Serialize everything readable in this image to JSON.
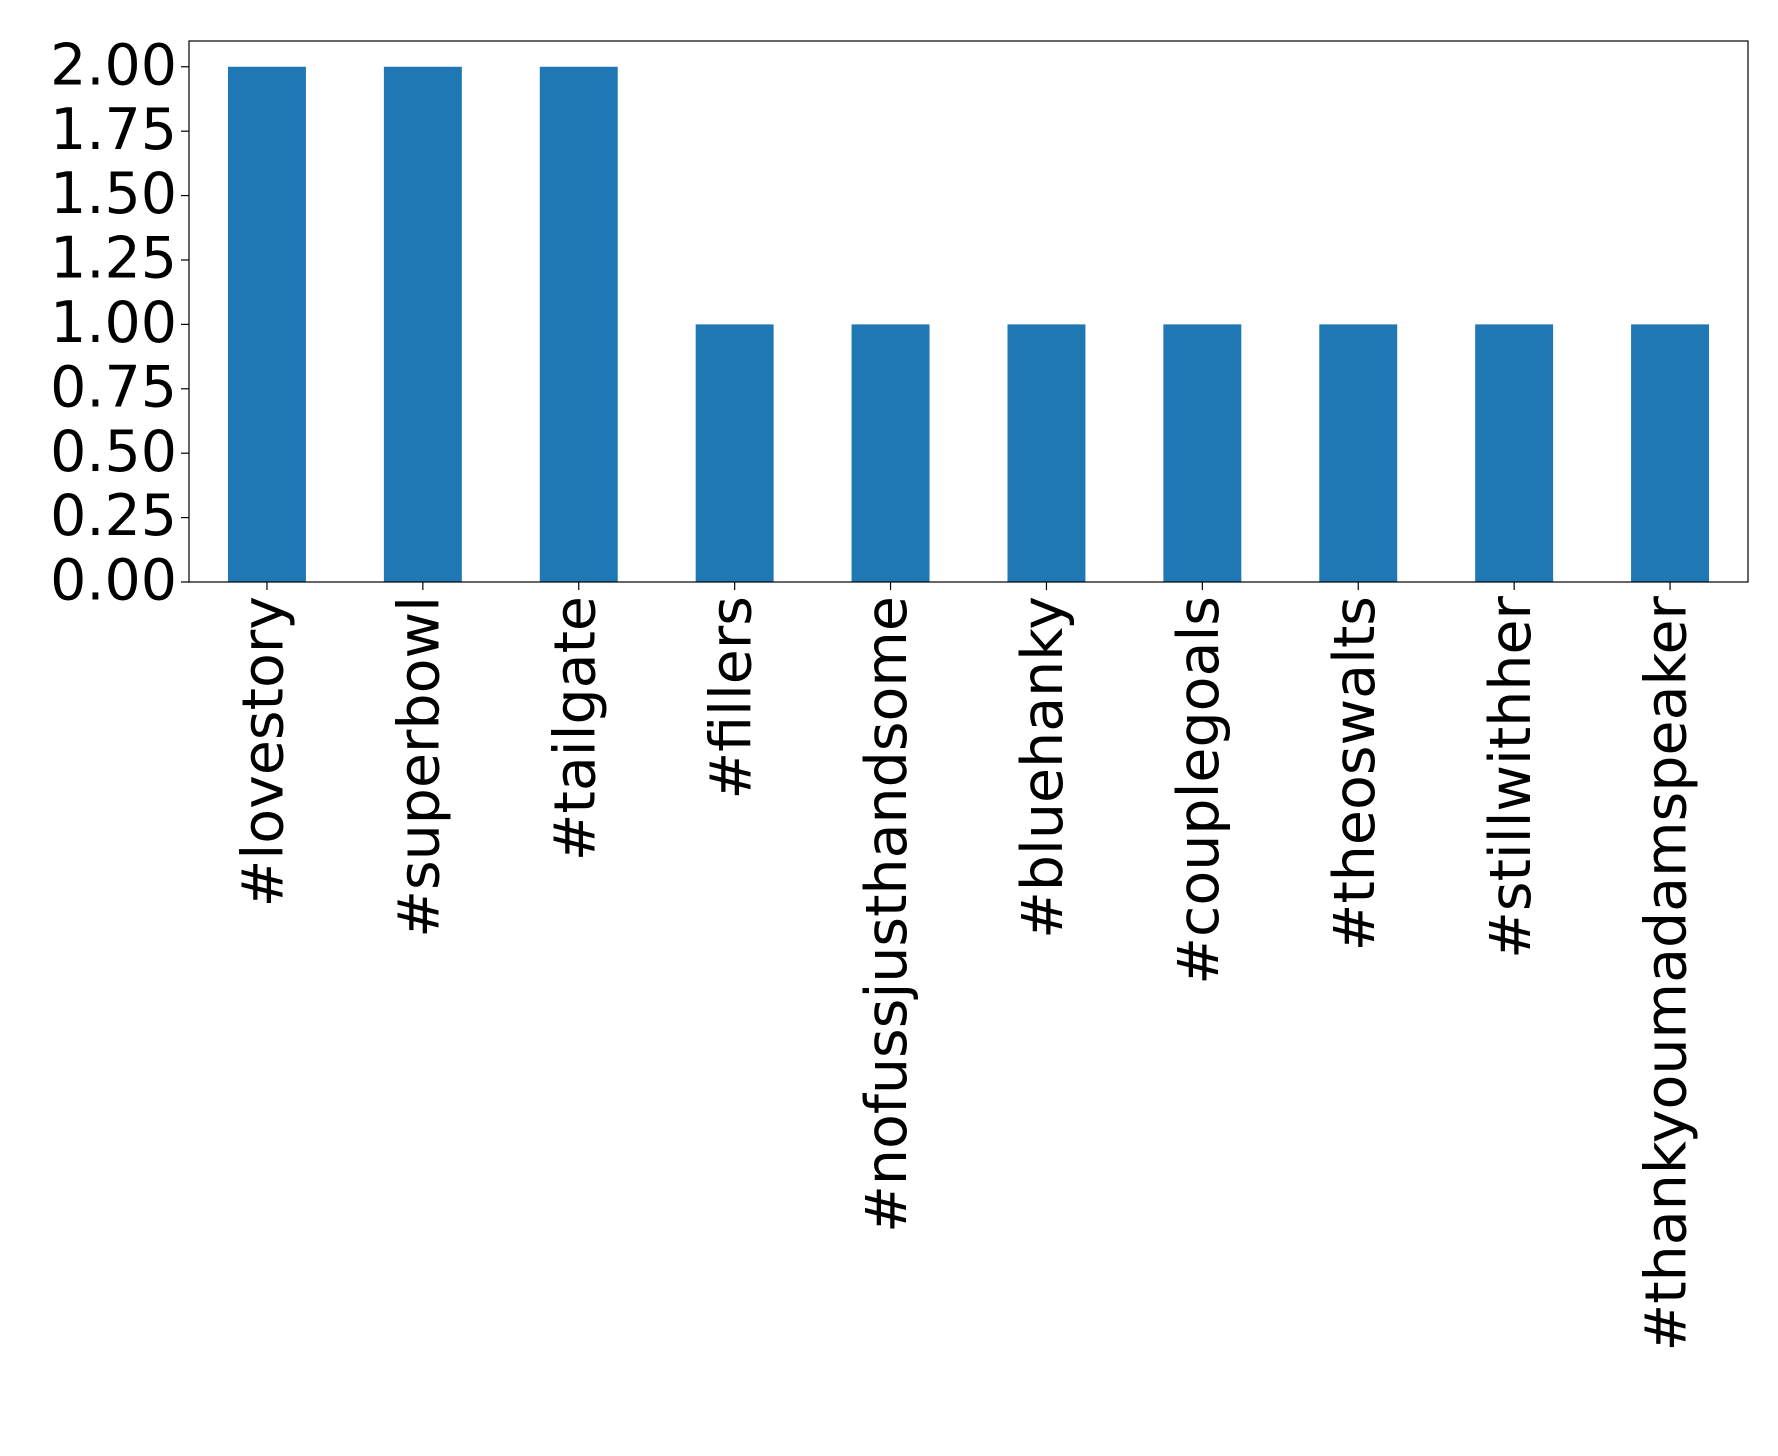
{
  "chart_data": {
    "type": "bar",
    "categories": [
      "#lovestory",
      "#superbowl",
      "#tailgate",
      "#fillers",
      "#nofussjusthandsome",
      "#bluehanky",
      "#couplegoals",
      "#theoswalts",
      "#stillwithher",
      "#thankyoumadamspeaker"
    ],
    "values": [
      2,
      2,
      2,
      1,
      1,
      1,
      1,
      1,
      1,
      1
    ],
    "color": "#1f77b4",
    "ylim": [
      0,
      2.1
    ],
    "yticks": [
      {
        "value": 0,
        "label": "0.00"
      },
      {
        "value": 0.25,
        "label": "0.25"
      },
      {
        "value": 0.5,
        "label": "0.50"
      },
      {
        "value": 0.75,
        "label": "0.75"
      },
      {
        "value": 1,
        "label": "1.00"
      },
      {
        "value": 1.25,
        "label": "1.25"
      },
      {
        "value": 1.5,
        "label": "1.50"
      },
      {
        "value": 1.75,
        "label": "1.75"
      },
      {
        "value": 2,
        "label": "2.00"
      }
    ],
    "grid": false
  }
}
